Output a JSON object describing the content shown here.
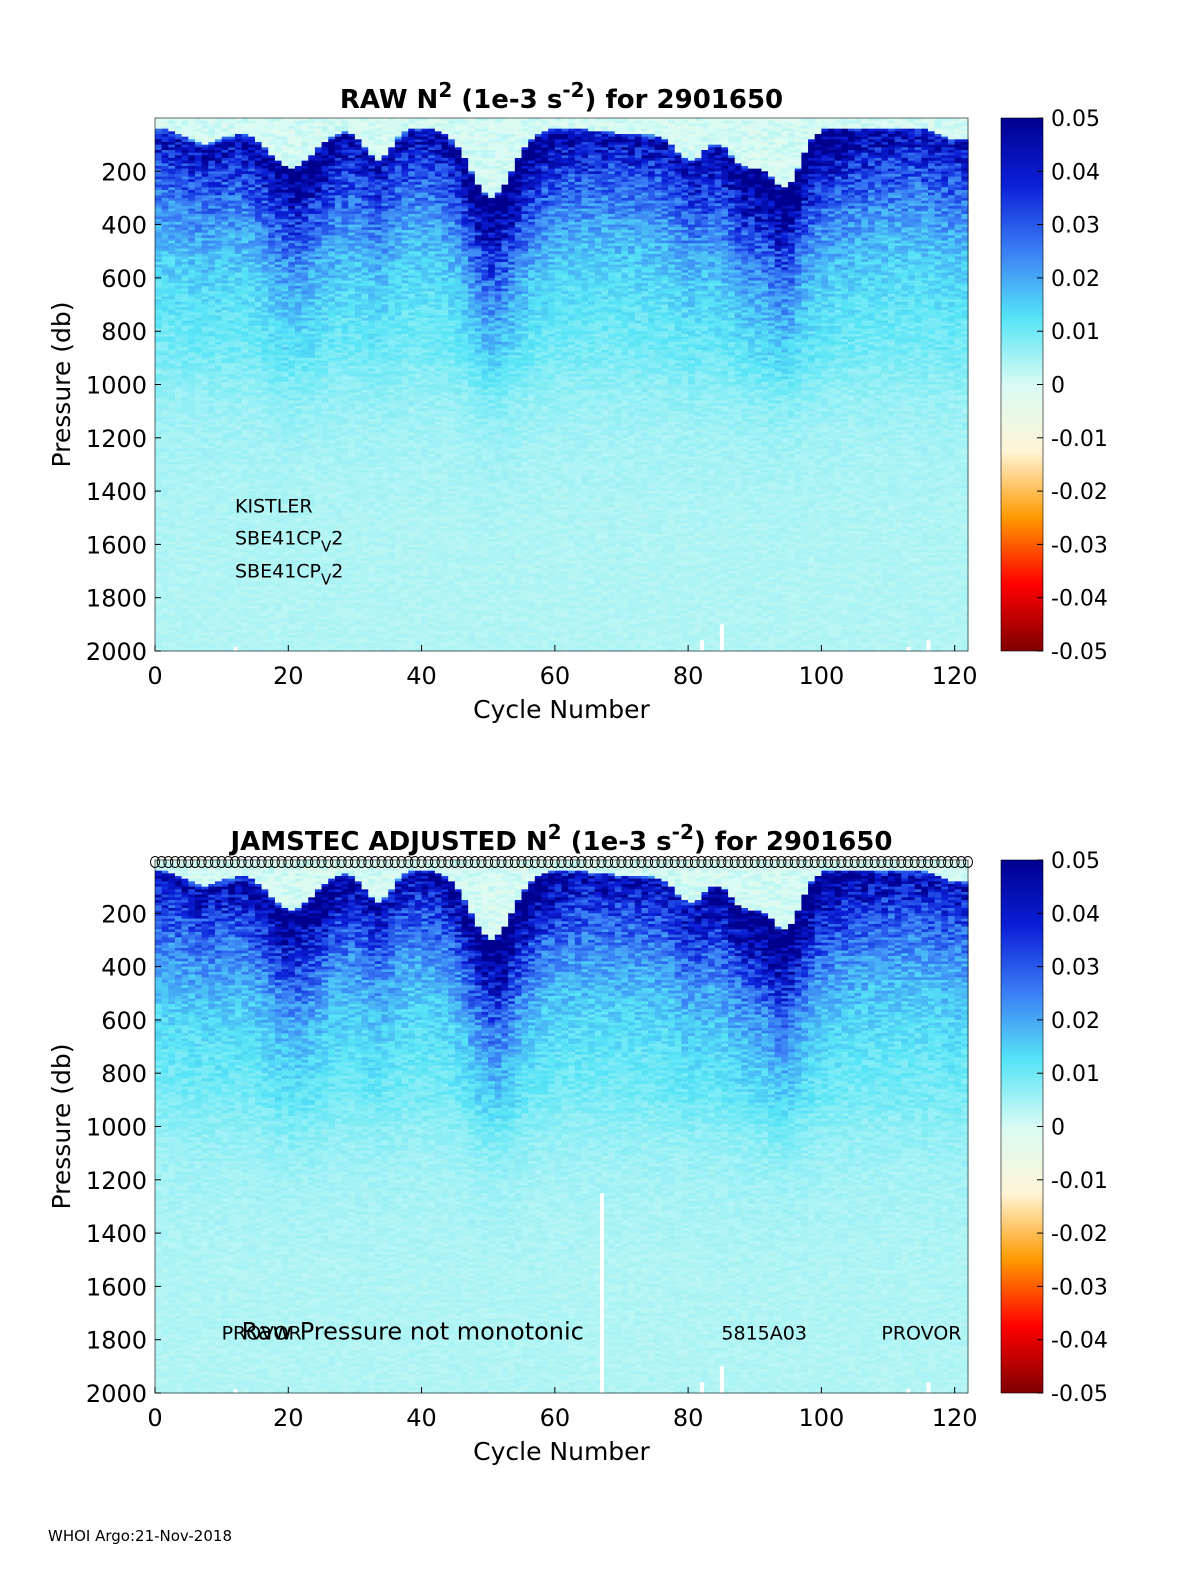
{
  "footer": "WHOI Argo:21-Nov-2018",
  "colors": {
    "colormap_stops": [
      "#7f0000",
      "#ff0000",
      "#ff9900",
      "#fff5d6",
      "#d8fbf4",
      "#55e4f6",
      "#3b7ff5",
      "#0b1fd8",
      "#00008f"
    ],
    "axis": "#000000",
    "gap": "#ffffff"
  },
  "chart_data": [
    {
      "type": "heatmap",
      "id": "raw",
      "title": {
        "main": "RAW N",
        "sup1": "2",
        "mid": " (1e-3 s",
        "sup2": "-2",
        "end": ") for 2901650"
      },
      "xlabel": "Cycle Number",
      "ylabel": "Pressure (db)",
      "xlim": [
        0,
        122
      ],
      "ylim": [
        0,
        2000
      ],
      "xticks": [
        0,
        20,
        40,
        60,
        80,
        100,
        120
      ],
      "yticks": [
        200,
        400,
        600,
        800,
        1000,
        1200,
        1400,
        1600,
        1800,
        2000
      ],
      "clim": [
        -0.05,
        0.05
      ],
      "cbar_ticks": [
        "0.05",
        "0.04",
        "0.03",
        "0.02",
        "0.01",
        "0",
        "-0.01",
        "-0.02",
        "-0.03",
        "-0.04",
        "-0.05"
      ],
      "annotations": [
        {
          "text": "KISTLER",
          "sub": "",
          "tail": "",
          "x": 12,
          "y": 1480
        },
        {
          "text": "SBE41CP",
          "sub": "V",
          "tail": "2",
          "x": 12,
          "y": 1600
        },
        {
          "text": "SBE41CP",
          "sub": "V",
          "tail": "2",
          "x": 12,
          "y": 1725
        }
      ],
      "gaps": [
        {
          "cycle": 85,
          "top": 1900
        },
        {
          "cycle": 82,
          "top": 1960
        },
        {
          "cycle": 12,
          "top": 1985
        },
        {
          "cycle": 113,
          "top": 1985
        },
        {
          "cycle": 116,
          "top": 1960
        }
      ],
      "qc_markers": false,
      "summary": "Strong stratification 0.03-0.05 in upper 700 db with near-zero mixed layer near surface (deepest near cycles 20, 50, 93); weak 0.001-0.01 below 1000 db"
    },
    {
      "type": "heatmap",
      "id": "adjusted",
      "title": {
        "main": "JAMSTEC  ADJUSTED N",
        "sup1": "2",
        "mid": " (1e-3 s",
        "sup2": "-2",
        "end": ") for 2901650"
      },
      "xlabel": "Cycle Number",
      "ylabel": "Pressure (db)",
      "xlim": [
        0,
        122
      ],
      "ylim": [
        0,
        2000
      ],
      "xticks": [
        0,
        20,
        40,
        60,
        80,
        100,
        120
      ],
      "yticks": [
        200,
        400,
        600,
        800,
        1000,
        1200,
        1400,
        1600,
        1800,
        2000
      ],
      "clim": [
        -0.05,
        0.05
      ],
      "cbar_ticks": [
        "0.05",
        "0.04",
        "0.03",
        "0.02",
        "0.01",
        "0",
        "-0.01",
        "-0.02",
        "-0.03",
        "-0.04",
        "-0.05"
      ],
      "annotations": [
        {
          "text": "PROVOR",
          "sub": "",
          "tail": "",
          "x": 10,
          "y": 1800
        },
        {
          "text": "Raw Pressure not monotonic",
          "sub": "",
          "tail": "",
          "x": 13,
          "y": 1800,
          "large": true
        },
        {
          "text": "5815A03",
          "sub": "",
          "tail": "",
          "x": 85,
          "y": 1800
        },
        {
          "text": "PROVOR",
          "sub": "",
          "tail": "",
          "x": 109,
          "y": 1800
        }
      ],
      "gaps": [
        {
          "cycle": 67,
          "top": 1250
        },
        {
          "cycle": 85,
          "top": 1900
        },
        {
          "cycle": 82,
          "top": 1960
        },
        {
          "cycle": 12,
          "top": 1985
        },
        {
          "cycle": 113,
          "top": 1985
        },
        {
          "cycle": 116,
          "top": 1960
        }
      ],
      "qc_markers": true,
      "summary": "Same field as raw panel after adjustment; QC circles along the surface for every cycle"
    }
  ]
}
